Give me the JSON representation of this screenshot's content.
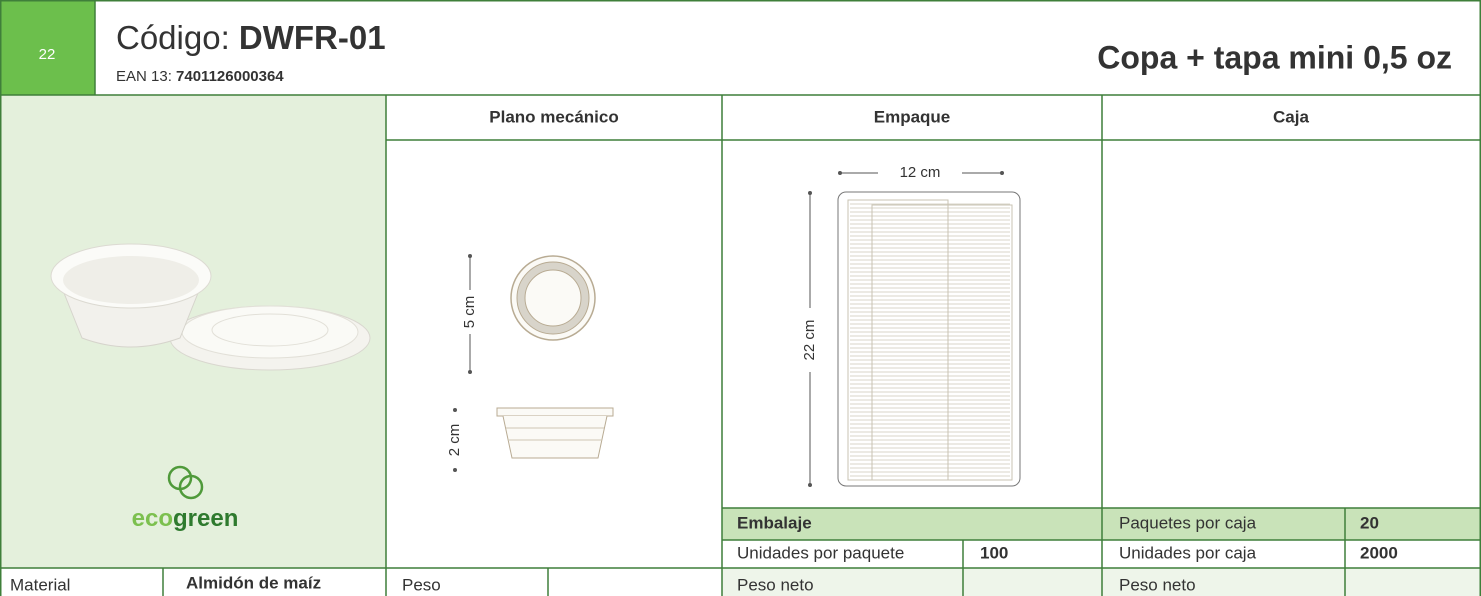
{
  "header": {
    "number": "22",
    "code_label": "Código: ",
    "code": "DWFR-01",
    "ean_label": "EAN 13: ",
    "ean": "7401126000364",
    "product": "Copa + tapa mini 0,5 oz"
  },
  "brand": {
    "eco": "eco",
    "green": "green"
  },
  "columns": [
    "Plano mecánico",
    "Empaque",
    "Caja"
  ],
  "dimensions": {
    "diameter": "5 cm",
    "height": "2 cm",
    "pack_width": "12 cm",
    "pack_height": "22 cm"
  },
  "table": {
    "embalaje": "Embalaje",
    "units_per_pack": [
      "Unidades por paquete",
      "100"
    ],
    "packs_per_box": [
      "Paquetes por caja",
      "20"
    ],
    "units_per_box": [
      "Unidades por caja",
      "2000"
    ],
    "material": [
      "Material",
      "Almidón de maíz"
    ],
    "weight": "Peso",
    "pack_net_weight": "Peso neto",
    "box_net_weight": "Peso neto"
  }
}
